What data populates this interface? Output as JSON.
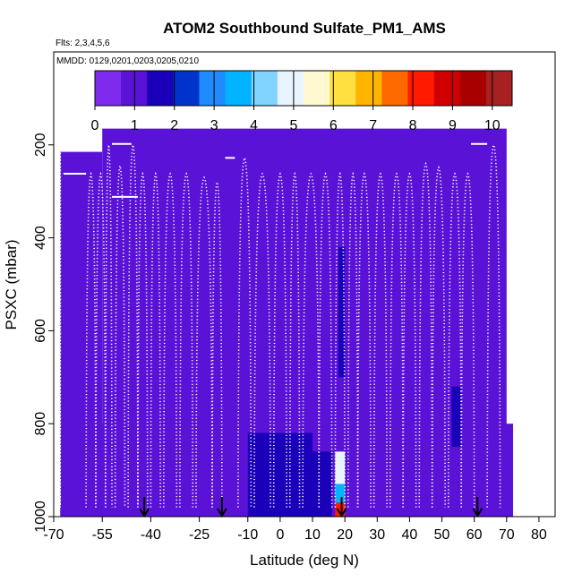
{
  "chart_data": {
    "type": "heatmap",
    "title": "ATOM2 Southbound Sulfate_PM1_AMS",
    "flights_note": "Flts: 2,3,4,5,6",
    "dates_note": "MMDD: 0129,0201,0203,0205,0210",
    "xlabel": "Latitude (deg N)",
    "ylabel": "PSXC (mbar)",
    "xlim": [
      -70,
      85
    ],
    "ylim": [
      1000,
      0
    ],
    "x_ticks": [
      -70,
      -55,
      -40,
      -25,
      -10,
      0,
      10,
      20,
      30,
      40,
      50,
      60,
      70,
      80
    ],
    "y_ticks": [
      200,
      400,
      600,
      800,
      1000
    ],
    "colorbar": {
      "range": [
        0,
        10.5
      ],
      "ticks": [
        0,
        1,
        2,
        3,
        4,
        5,
        6,
        7,
        8,
        9,
        10
      ],
      "colors": [
        "#7f2bee",
        "#5a12d6",
        "#1a00b8",
        "#0033cc",
        "#1e8cff",
        "#00b4ff",
        "#80d4ff",
        "#e8f4ff",
        "#fff8d0",
        "#ffe040",
        "#ffb400",
        "#ff6a00",
        "#ff1a00",
        "#d10000",
        "#a80000",
        "#a82020"
      ]
    },
    "regions": [
      {
        "lat": [
          -68,
          -55
        ],
        "p": [
          215,
          1000
        ],
        "value": 0.9
      },
      {
        "lat": [
          -55,
          70
        ],
        "p": [
          165,
          1000
        ],
        "value": 0.9
      },
      {
        "lat": [
          -58,
          72
        ],
        "p": [
          800,
          1000
        ],
        "value": 1.3
      },
      {
        "lat": [
          -10,
          10
        ],
        "p": [
          820,
          1000
        ],
        "value": 1.9
      },
      {
        "lat": [
          10,
          16
        ],
        "p": [
          860,
          1000
        ],
        "value": 1.7
      },
      {
        "lat": [
          17,
          20
        ],
        "p": [
          860,
          930
        ],
        "value": 4.6
      },
      {
        "lat": [
          17,
          20
        ],
        "p": [
          930,
          970
        ],
        "value": 3.8
      },
      {
        "lat": [
          17,
          20
        ],
        "p": [
          970,
          1000
        ],
        "value": 8.5
      },
      {
        "lat": [
          53,
          56
        ],
        "p": [
          720,
          850
        ],
        "value": 1.8
      },
      {
        "lat": [
          18,
          20
        ],
        "p": [
          420,
          700
        ],
        "value": 1.6
      }
    ],
    "flight_track": {
      "top_segments": [
        {
          "lat": [
            -67,
            -60
          ],
          "p": 262
        },
        {
          "lat": [
            -52,
            -46
          ],
          "p": 198
        },
        {
          "lat": [
            -52,
            -44
          ],
          "p": 312
        },
        {
          "lat": [
            -17,
            -14
          ],
          "p": 228
        },
        {
          "lat": [
            59,
            64
          ],
          "p": 198
        }
      ],
      "profiles": [
        {
          "lat0": -68,
          "lat1": -68,
          "p_top": 215,
          "p_bot": 980
        },
        {
          "lat0": -60,
          "lat1": -57,
          "p_top": 262,
          "p_bot": 980
        },
        {
          "lat0": -57,
          "lat1": -54,
          "p_top": 262,
          "p_bot": 980
        },
        {
          "lat0": -54,
          "lat1": -52,
          "p_top": 200,
          "p_bot": 980
        },
        {
          "lat0": -51,
          "lat1": -48,
          "p_top": 245,
          "p_bot": 980
        },
        {
          "lat0": -47,
          "lat1": -44,
          "p_top": 200,
          "p_bot": 980
        },
        {
          "lat0": -44,
          "lat1": -41,
          "p_top": 262,
          "p_bot": 980
        },
        {
          "lat0": -40,
          "lat1": -37,
          "p_top": 262,
          "p_bot": 980
        },
        {
          "lat0": -36,
          "lat1": -32,
          "p_top": 262,
          "p_bot": 980
        },
        {
          "lat0": -31,
          "lat1": -27,
          "p_top": 262,
          "p_bot": 980
        },
        {
          "lat0": -26,
          "lat1": -21,
          "p_top": 270,
          "p_bot": 980
        },
        {
          "lat0": -21,
          "lat1": -18,
          "p_top": 280,
          "p_bot": 980
        },
        {
          "lat0": -13,
          "lat1": -9,
          "p_top": 228,
          "p_bot": 980
        },
        {
          "lat0": -8,
          "lat1": -3,
          "p_top": 262,
          "p_bot": 980
        },
        {
          "lat0": -2,
          "lat1": 2,
          "p_top": 262,
          "p_bot": 980
        },
        {
          "lat0": 3,
          "lat1": 6,
          "p_top": 262,
          "p_bot": 980
        },
        {
          "lat0": 7,
          "lat1": 12,
          "p_top": 262,
          "p_bot": 980
        },
        {
          "lat0": 12,
          "lat1": 16,
          "p_top": 262,
          "p_bot": 980
        },
        {
          "lat0": 17,
          "lat1": 20,
          "p_top": 262,
          "p_bot": 980
        },
        {
          "lat0": 21,
          "lat1": 24,
          "p_top": 262,
          "p_bot": 980
        },
        {
          "lat0": 24,
          "lat1": 28,
          "p_top": 262,
          "p_bot": 980
        },
        {
          "lat0": 29,
          "lat1": 33,
          "p_top": 262,
          "p_bot": 980
        },
        {
          "lat0": 34,
          "lat1": 38,
          "p_top": 262,
          "p_bot": 980
        },
        {
          "lat0": 38,
          "lat1": 42,
          "p_top": 262,
          "p_bot": 980
        },
        {
          "lat0": 43,
          "lat1": 47,
          "p_top": 240,
          "p_bot": 980
        },
        {
          "lat0": 47,
          "lat1": 51,
          "p_top": 248,
          "p_bot": 980
        },
        {
          "lat0": 52,
          "lat1": 56,
          "p_top": 262,
          "p_bot": 980
        },
        {
          "lat0": 56,
          "lat1": 60,
          "p_top": 262,
          "p_bot": 980
        },
        {
          "lat0": 64,
          "lat1": 68,
          "p_top": 200,
          "p_bot": 980
        }
      ]
    },
    "markers_lat": [
      -42,
      -18,
      19,
      61
    ]
  }
}
